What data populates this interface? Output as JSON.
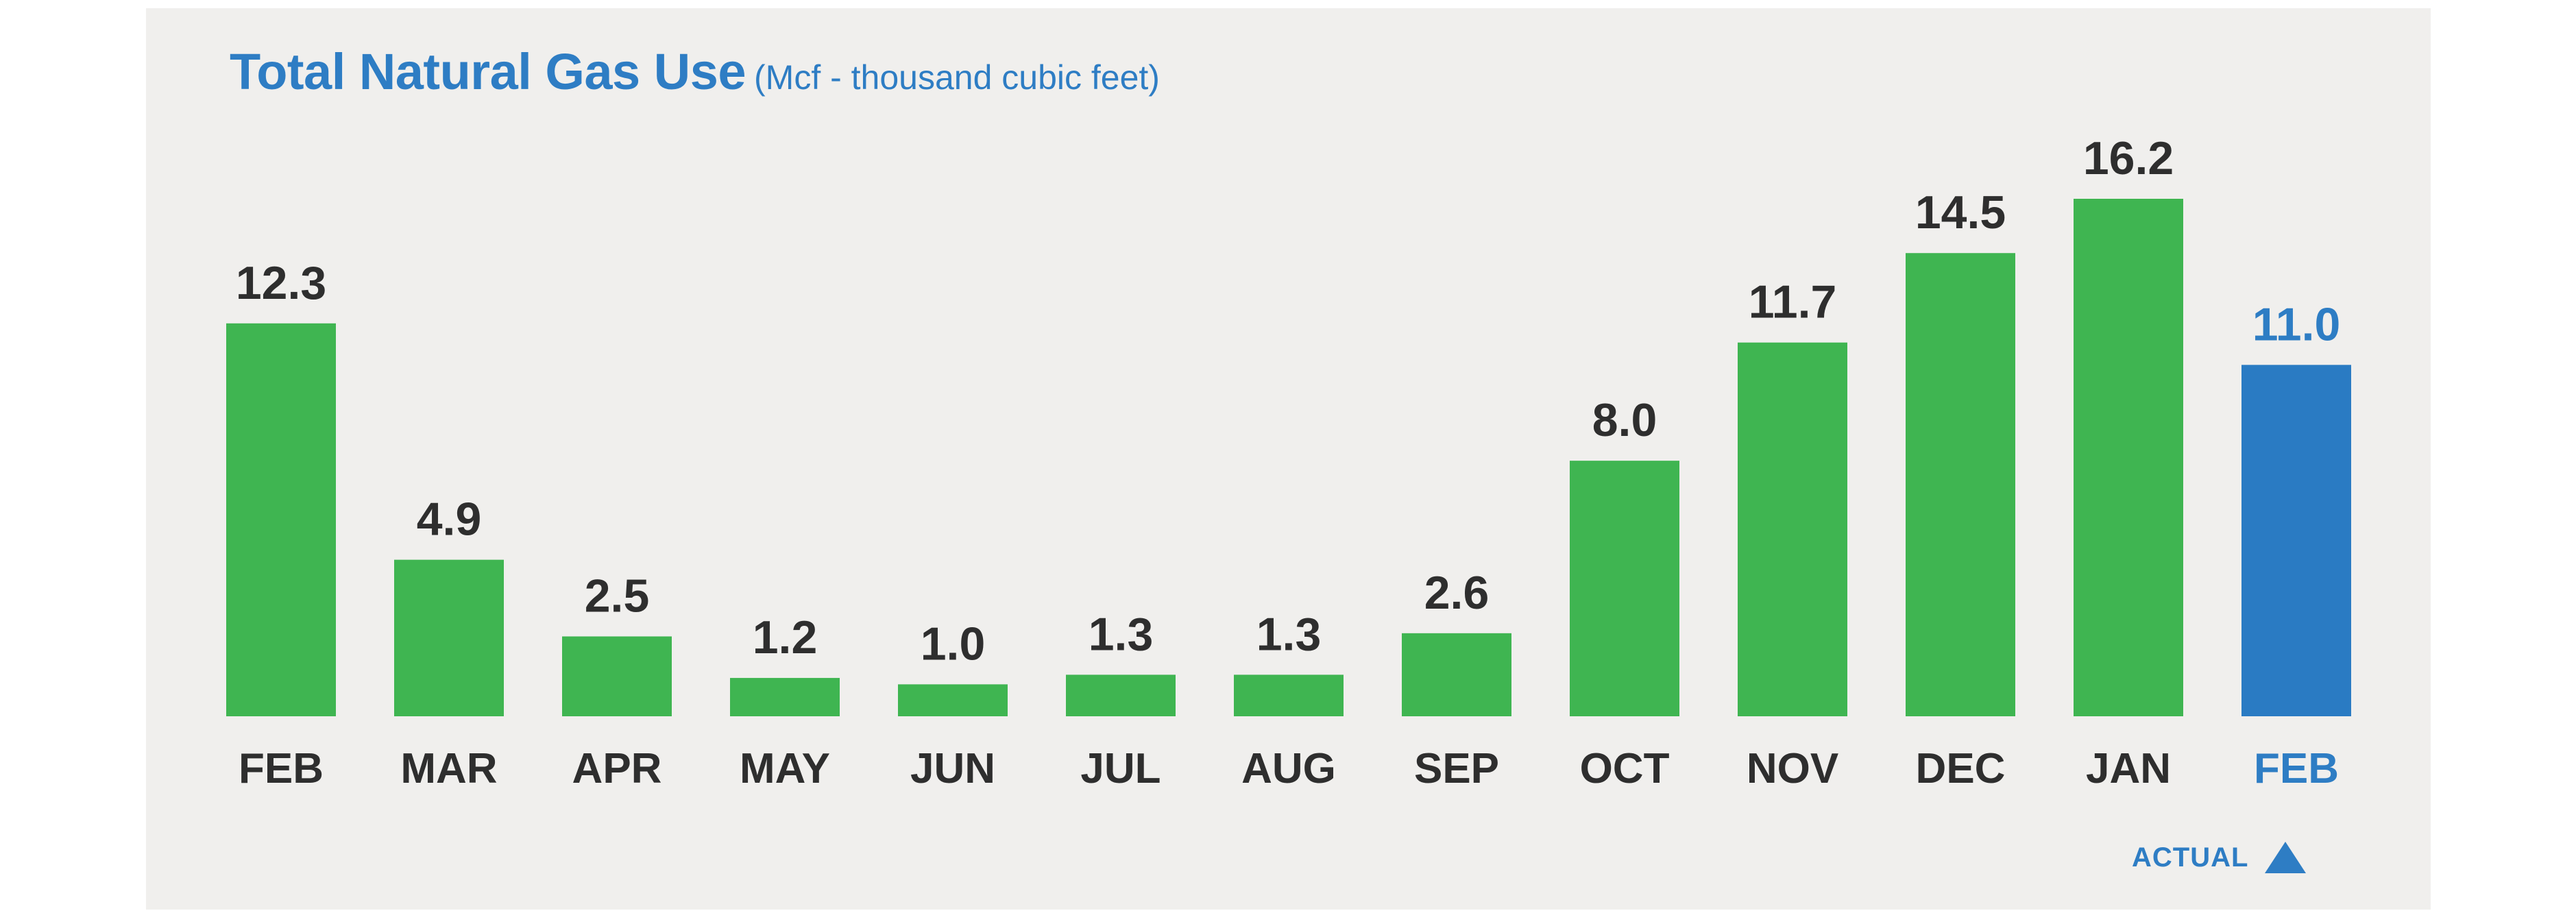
{
  "colors": {
    "background": "#f0efed",
    "estimated_bar": "#3fb551",
    "actual_bar": "#2a7bc3",
    "label_text": "#2e2e2e",
    "accent": "#2e7dc4"
  },
  "chart_data": {
    "type": "bar",
    "title": "Total Natural Gas Use",
    "subtitle": "(Mcf - thousand cubic feet)",
    "xlabel": "",
    "ylabel": "",
    "ylim": [
      0,
      16.2
    ],
    "grid": false,
    "categories": [
      "FEB",
      "MAR",
      "APR",
      "MAY",
      "JUN",
      "JUL",
      "AUG",
      "SEP",
      "OCT",
      "NOV",
      "DEC",
      "JAN",
      "FEB"
    ],
    "values": [
      12.3,
      4.9,
      2.5,
      1.2,
      1.0,
      1.3,
      1.3,
      2.6,
      8.0,
      11.7,
      14.5,
      16.2,
      11.0
    ],
    "value_labels": [
      "12.3",
      "4.9",
      "2.5",
      "1.2",
      "1.0",
      "1.3",
      "1.3",
      "2.6",
      "8.0",
      "11.7",
      "14.5",
      "16.2",
      "11.0"
    ],
    "highlight_index": 12,
    "legend": {
      "label": "ACTUAL",
      "icon": "triangle-up-icon",
      "placement": "bottom-right"
    }
  }
}
